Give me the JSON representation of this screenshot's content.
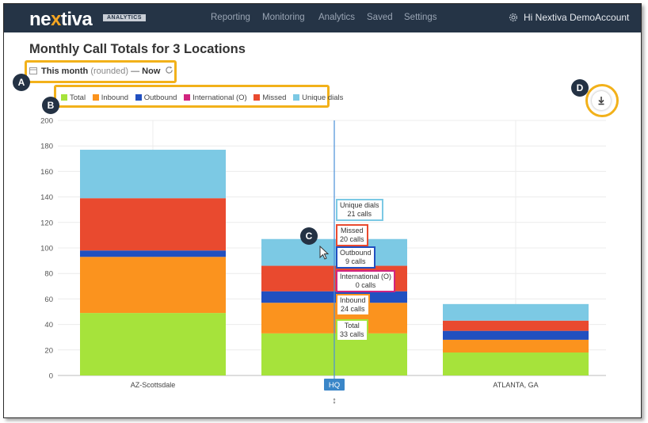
{
  "header": {
    "logo_text_a": "ne",
    "logo_text_x": "x",
    "logo_text_b": "tiva",
    "logo_badge": "ANALYTICS",
    "nav": [
      "Reporting",
      "Monitoring",
      "Analytics",
      "Saved",
      "Settings"
    ],
    "greeting": "Hi Nextiva DemoAccount"
  },
  "page": {
    "title": "Monthly Call Totals for 3 Locations"
  },
  "date_range": {
    "start_label": "This month",
    "qualifier": "(rounded)",
    "separator": "—",
    "end_label": "Now"
  },
  "markers": {
    "a": "A",
    "b": "B",
    "c": "C",
    "d": "D"
  },
  "legend": [
    {
      "label": "Total",
      "color": "#a6e33b"
    },
    {
      "label": "Inbound",
      "color": "#fb931e"
    },
    {
      "label": "Outbound",
      "color": "#2150c0"
    },
    {
      "label": "International (O)",
      "color": "#d1247f"
    },
    {
      "label": "Missed",
      "color": "#e94a2f"
    },
    {
      "label": "Unique dials",
      "color": "#7cc9e4"
    }
  ],
  "icons": {
    "download": "download-icon",
    "settings": "gear-icon",
    "calendar": "calendar-icon",
    "refresh": "refresh-icon"
  },
  "chart_data": {
    "type": "bar",
    "stacked": true,
    "categories": [
      "AZ-Scottsdale",
      "HQ",
      "ATLANTA, GA"
    ],
    "series": [
      {
        "name": "Total",
        "color": "#a6e33b",
        "values": [
          49,
          33,
          18
        ]
      },
      {
        "name": "Inbound",
        "color": "#fb931e",
        "values": [
          44,
          24,
          10
        ]
      },
      {
        "name": "Outbound",
        "color": "#2150c0",
        "values": [
          5,
          9,
          7
        ]
      },
      {
        "name": "International (O)",
        "color": "#d1247f",
        "values": [
          0,
          0,
          0
        ]
      },
      {
        "name": "Missed",
        "color": "#e94a2f",
        "values": [
          41,
          20,
          8
        ]
      },
      {
        "name": "Unique dials",
        "color": "#7cc9e4",
        "values": [
          38,
          21,
          13
        ]
      }
    ],
    "ylim": [
      0,
      200
    ],
    "yticks": [
      0,
      20,
      40,
      60,
      80,
      100,
      120,
      140,
      160,
      180,
      200
    ],
    "grid": true,
    "legend_position": "top-left",
    "highlight_category": "HQ"
  },
  "tooltip": {
    "category": "HQ",
    "unit": "calls",
    "entries": [
      {
        "label": "Unique dials",
        "value": "21 calls",
        "border": "#7cc9e4"
      },
      {
        "label": "Missed",
        "value": "20 calls",
        "border": "#e94a2f"
      },
      {
        "label": "Outbound",
        "value": "9 calls",
        "border": "#2150c0"
      },
      {
        "label": "International (O)",
        "value": "0 calls",
        "border": "#d1247f"
      },
      {
        "label": "Inbound",
        "value": "24 calls",
        "border": "#fb931e"
      },
      {
        "label": "Total",
        "value": "33 calls",
        "border": "#a6e33b"
      }
    ]
  }
}
